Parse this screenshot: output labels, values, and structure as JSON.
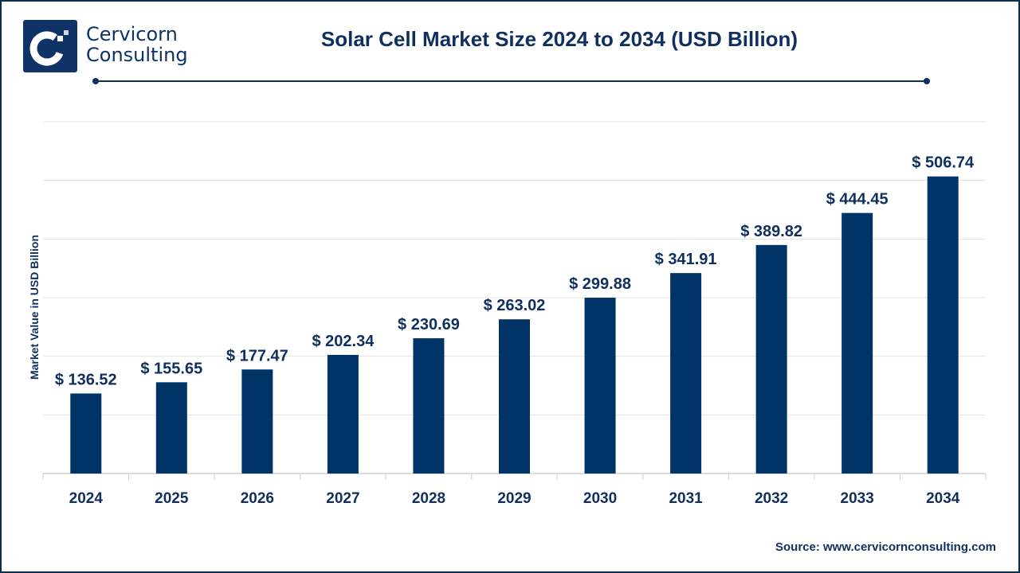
{
  "brand": {
    "line1": "Cervicorn",
    "line2": "Consulting"
  },
  "source": "Source: www.cervicornconsulting.com",
  "colors": {
    "bar": "#003366",
    "text": "#0f2f5f",
    "grid": "#e3e3e3"
  },
  "chart_data": {
    "type": "bar",
    "title": "Solar Cell Market Size 2024 to 2034 (USD Billion)",
    "xlabel": "",
    "ylabel": "Market Value in USD Billion",
    "categories": [
      "2024",
      "2025",
      "2026",
      "2027",
      "2028",
      "2029",
      "2030",
      "2031",
      "2032",
      "2033",
      "2034"
    ],
    "values": [
      136.52,
      155.65,
      177.47,
      202.34,
      230.69,
      263.02,
      299.88,
      341.91,
      389.82,
      444.45,
      506.74
    ],
    "data_labels": [
      "$ 136.52",
      "$ 155.65",
      "$ 177.47",
      "$ 202.34",
      "$ 230.69",
      "$ 263.02",
      "$ 299.88",
      "$ 341.91",
      "$ 389.82",
      "$ 444.45",
      "$ 506.74"
    ],
    "ylim": [
      0,
      600
    ],
    "grid": true,
    "y_tick_labels_shown": false
  }
}
